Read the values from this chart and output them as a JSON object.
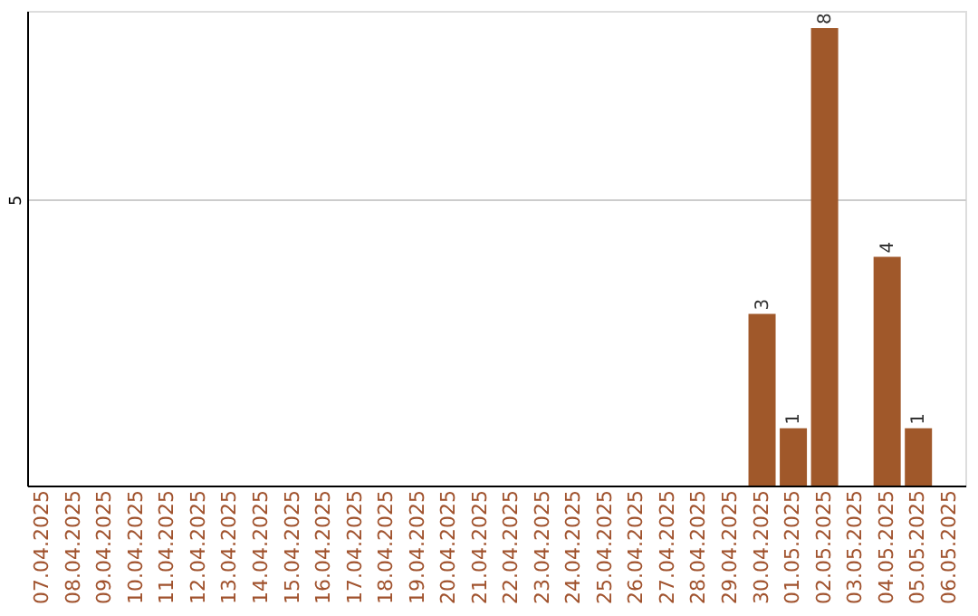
{
  "chart_data": {
    "type": "bar",
    "categories": [
      "07.04.2025",
      "08.04.2025",
      "09.04.2025",
      "10.04.2025",
      "11.04.2025",
      "12.04.2025",
      "13.04.2025",
      "14.04.2025",
      "15.04.2025",
      "16.04.2025",
      "17.04.2025",
      "18.04.2025",
      "19.04.2025",
      "20.04.2025",
      "21.04.2025",
      "22.04.2025",
      "23.04.2025",
      "24.04.2025",
      "25.04.2025",
      "26.04.2025",
      "27.04.2025",
      "28.04.2025",
      "29.04.2025",
      "30.04.2025",
      "01.05.2025",
      "02.05.2025",
      "03.05.2025",
      "04.05.2025",
      "05.05.2025",
      "06.05.2025"
    ],
    "values": [
      null,
      null,
      null,
      null,
      null,
      null,
      null,
      null,
      null,
      null,
      null,
      null,
      null,
      null,
      null,
      null,
      null,
      null,
      null,
      null,
      null,
      null,
      null,
      3,
      1,
      8,
      null,
      4,
      1,
      null
    ],
    "color": "#a0582a",
    "ylim": [
      0,
      8.3
    ],
    "yticks": [
      5
    ],
    "grid": "y",
    "data_labels": true
  }
}
